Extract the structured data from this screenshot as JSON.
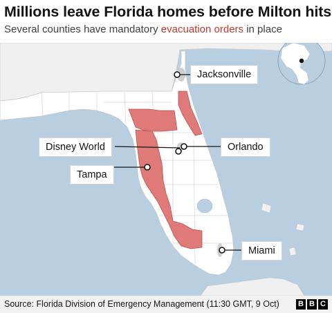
{
  "title": "Millions leave Florida homes before Milton hits",
  "subtitle": {
    "before": "Several counties have mandatory ",
    "highlight": "evacuation orders",
    "after": " in place"
  },
  "labels": {
    "jacksonville": "Jacksonville",
    "disney": "Disney World",
    "orlando": "Orlando",
    "tampa": "Tampa",
    "miami": "Miami"
  },
  "source": "Source: Florida Division of Emergency Management (11:30 GMT, 9 Oct)",
  "logo": [
    "B",
    "B",
    "C"
  ],
  "colors": {
    "sea": "#b9cfdf",
    "land": "#ffffff",
    "neighbour_land": "#f0f0f0",
    "evacuation": "#e07a78",
    "urban": "#cfcfcf",
    "highlight_text": "#c0392b"
  }
}
